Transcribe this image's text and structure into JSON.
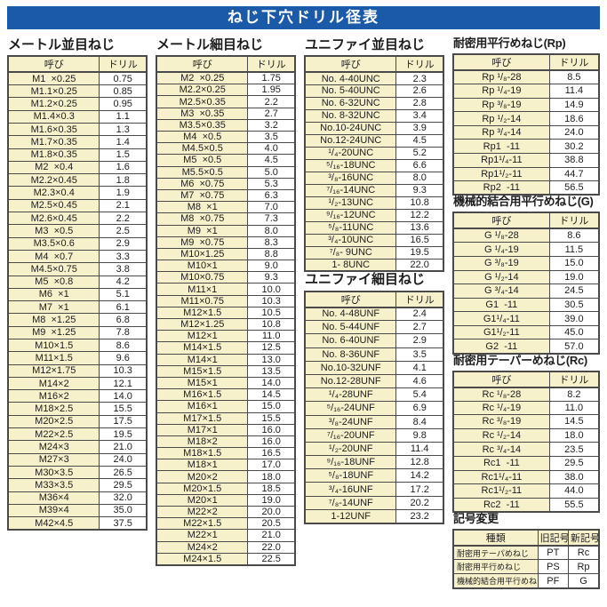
{
  "title": "ねじ下穴ドリル径表",
  "table_headers": {
    "name": "呼び",
    "drill": "ドリル"
  },
  "colors": {
    "c_bar": "#1a5aa8",
    "c_cream": "#f6f0cb",
    "c_border": "#4a4a4a"
  },
  "sections": {
    "metric_coarse": {
      "title": "メートル並目ねじ",
      "rows": [
        [
          "M1  ×0.25",
          "0.75"
        ],
        [
          "M1.1×0.25",
          "0.85"
        ],
        [
          "M1.2×0.25",
          "0.95"
        ],
        [
          "M1.4×0.3",
          "1.1"
        ],
        [
          "M1.6×0.35",
          "1.3"
        ],
        [
          "M1.7×0.35",
          "1.4"
        ],
        [
          "M1.8×0.35",
          "1.5"
        ],
        [
          "M2  ×0.4",
          "1.6"
        ],
        [
          "M2.2×0.45",
          "1.8"
        ],
        [
          "M2.3×0.4",
          "1.9"
        ],
        [
          "M2.5×0.45",
          "2.1"
        ],
        [
          "M2.6×0.45",
          "2.2"
        ],
        [
          "M3  ×0.5",
          "2.5"
        ],
        [
          "M3.5×0.6",
          "2.9"
        ],
        [
          "M4  ×0.7",
          "3.3"
        ],
        [
          "M4.5×0.75",
          "3.8"
        ],
        [
          "M5  ×0.8",
          "4.2"
        ],
        [
          "M6  ×1",
          "5.1"
        ],
        [
          "M7  ×1",
          "6.1"
        ],
        [
          "M8  ×1.25",
          "6.8"
        ],
        [
          "M9  ×1.25",
          "7.8"
        ],
        [
          "M10×1.5",
          "8.6"
        ],
        [
          "M11×1.5",
          "9.6"
        ],
        [
          "M12×1.75",
          "10.3"
        ],
        [
          "M14×2",
          "12.1"
        ],
        [
          "M16×2",
          "14.0"
        ],
        [
          "M18×2.5",
          "15.5"
        ],
        [
          "M20×2.5",
          "17.5"
        ],
        [
          "M22×2.5",
          "19.5"
        ],
        [
          "M24×3",
          "21.0"
        ],
        [
          "M27×3",
          "24.0"
        ],
        [
          "M30×3.5",
          "26.5"
        ],
        [
          "M33×3.5",
          "29.5"
        ],
        [
          "M36×4",
          "32.0"
        ],
        [
          "M39×4",
          "35.0"
        ],
        [
          "M42×4.5",
          "37.5"
        ]
      ]
    },
    "metric_fine": {
      "title": "メートル細目ねじ",
      "rows": [
        [
          "M2  ×0.25",
          "1.75"
        ],
        [
          "M2.2×0.25",
          "1.95"
        ],
        [
          "M2.5×0.35",
          "2.2"
        ],
        [
          "M3  ×0.35",
          "2.7"
        ],
        [
          "M3.5×0.35",
          "3.2"
        ],
        [
          "M4  ×0.5",
          "3.5"
        ],
        [
          "M4.5×0.5",
          "4.0"
        ],
        [
          "M5  ×0.5",
          "4.5"
        ],
        [
          "M5.5×0.5",
          "5.0"
        ],
        [
          "M6  ×0.75",
          "5.3"
        ],
        [
          "M7  ×0.75",
          "6.3"
        ],
        [
          "M8  ×1",
          "7.0"
        ],
        [
          "M8  ×0.75",
          "7.3"
        ],
        [
          "M9  ×1",
          "8.0"
        ],
        [
          "M9  ×0.75",
          "8.3"
        ],
        [
          "M10×1.25",
          "8.8"
        ],
        [
          "M10×1",
          "9.0"
        ],
        [
          "M10×0.75",
          "9.3"
        ],
        [
          "M11×1",
          "10.0"
        ],
        [
          "M11×0.75",
          "10.3"
        ],
        [
          "M12×1.5",
          "10.5"
        ],
        [
          "M12×1.25",
          "10.8"
        ],
        [
          "M12×1",
          "11.0"
        ],
        [
          "M14×1.5",
          "12.5"
        ],
        [
          "M14×1",
          "13.0"
        ],
        [
          "M15×1.5",
          "13.5"
        ],
        [
          "M15×1",
          "14.0"
        ],
        [
          "M16×1.5",
          "14.5"
        ],
        [
          "M16×1",
          "15.0"
        ],
        [
          "M17×1.5",
          "15.5"
        ],
        [
          "M17×1",
          "16.0"
        ],
        [
          "M18×2",
          "16.0"
        ],
        [
          "M18×1.5",
          "16.5"
        ],
        [
          "M18×1",
          "17.0"
        ],
        [
          "M20×2",
          "18.0"
        ],
        [
          "M20×1.5",
          "18.5"
        ],
        [
          "M20×1",
          "19.0"
        ],
        [
          "M22×2",
          "20.0"
        ],
        [
          "M22×1.5",
          "20.5"
        ],
        [
          "M22×1",
          "21.0"
        ],
        [
          "M24×2",
          "22.0"
        ],
        [
          "M24×1.5",
          "22.5"
        ]
      ]
    },
    "unified_coarse": {
      "title": "ユニファイ並目ねじ",
      "rows": [
        [
          "No. 4-40UNC",
          "2.3"
        ],
        [
          "No. 5-40UNC",
          "2.6"
        ],
        [
          "No. 6-32UNC",
          "2.8"
        ],
        [
          "No. 8-32UNC",
          "3.4"
        ],
        [
          "No.10-24UNC",
          "3.9"
        ],
        [
          "No.12-24UNC",
          "4.5"
        ],
        [
          "¹/₄-20UNC",
          "5.2"
        ],
        [
          "⁵/₁₆-18UNC",
          "6.6"
        ],
        [
          "³/₈-16UNC",
          "8.0"
        ],
        [
          "⁷/₁₆-14UNC",
          "9.3"
        ],
        [
          "¹/₂-13UNC",
          "10.8"
        ],
        [
          "⁹/₁₆-12UNC",
          "12.2"
        ],
        [
          "⁵/₈-11UNC",
          "13.6"
        ],
        [
          "³/₄-10UNC",
          "16.5"
        ],
        [
          "⁷/₈- 9UNC",
          "19.5"
        ],
        [
          "1- 8UNC",
          "22.0"
        ]
      ]
    },
    "unified_fine": {
      "title": "ユニファイ細目ねじ",
      "rows": [
        [
          "No. 4-48UNF",
          "2.4"
        ],
        [
          "No. 5-44UNF",
          "2.7"
        ],
        [
          "No. 6-40UNF",
          "2.9"
        ],
        [
          "No. 8-36UNF",
          "3.5"
        ],
        [
          "No.10-32UNF",
          "4.1"
        ],
        [
          "No.12-28UNF",
          "4.6"
        ],
        [
          "¹/₄-28UNF",
          "5.4"
        ],
        [
          "⁵/₁₆-24UNF",
          "6.9"
        ],
        [
          "³/₈-24UNF",
          "8.4"
        ],
        [
          "⁷/₁₆-20UNF",
          "9.8"
        ],
        [
          "¹/₂-20UNF",
          "11.4"
        ],
        [
          "⁹/₁₆-18UNF",
          "12.8"
        ],
        [
          "⁵/₈-18UNF",
          "14.2"
        ],
        [
          "³/₄-16UNF",
          "17.2"
        ],
        [
          "⁷/₈-14UNF",
          "20.2"
        ],
        [
          "1-12UNF",
          "23.2"
        ]
      ]
    },
    "rp": {
      "title": "耐密用平行めねじ(Rp)",
      "rows": [
        [
          "Rp ¹/₈-28",
          "8.5"
        ],
        [
          "Rp ¹/₄-19",
          "11.4"
        ],
        [
          "Rp ³/₈-19",
          "14.9"
        ],
        [
          "Rp ¹/₂-14",
          "18.6"
        ],
        [
          "Rp ³/₄-14",
          "24.0"
        ],
        [
          "Rp1  -11",
          "30.2"
        ],
        [
          "Rp1¹/₄-11",
          "38.8"
        ],
        [
          "Rp1¹/₂-11",
          "44.7"
        ],
        [
          "Rp2  -11",
          "56.5"
        ]
      ]
    },
    "g": {
      "title": "機械的結合用平行めねじ(G)",
      "rows": [
        [
          "G ¹/₈-28",
          "8.6"
        ],
        [
          "G ¹/₄-19",
          "11.5"
        ],
        [
          "G ³/₈-19",
          "15.0"
        ],
        [
          "G ¹/₂-14",
          "19.0"
        ],
        [
          "G ³/₄-14",
          "24.5"
        ],
        [
          "G1  -11",
          "30.5"
        ],
        [
          "G1¹/₄-11",
          "39.0"
        ],
        [
          "G1¹/₂-11",
          "45.0"
        ],
        [
          "G2  -11",
          "57.0"
        ]
      ]
    },
    "rc": {
      "title": "耐密用テーパーめねじ(Rc)",
      "rows": [
        [
          "Rc ¹/₈-28",
          "8.2"
        ],
        [
          "Rc ¹/₄-19",
          "11.0"
        ],
        [
          "Rc ³/₈-19",
          "14.5"
        ],
        [
          "Rc ¹/₂-14",
          "18.0"
        ],
        [
          "Rc ³/₄-14",
          "23.5"
        ],
        [
          "Rc1  -11",
          "29.5"
        ],
        [
          "Rc1¹/₄-11",
          "38.0"
        ],
        [
          "Rc1¹/₂-11",
          "44.0"
        ],
        [
          "Rc2  -11",
          "55.5"
        ]
      ]
    },
    "symbol_change": {
      "title": "記号変更",
      "headers": {
        "type": "種類",
        "old": "旧記号",
        "new": "新記号"
      },
      "rows": [
        [
          "耐密用テーパめねじ",
          "PT",
          "Rc"
        ],
        [
          "耐密用平行めねじ",
          "PS",
          "Rp"
        ],
        [
          "機械的結合用平行めねじ",
          "PF",
          "G"
        ]
      ]
    }
  }
}
